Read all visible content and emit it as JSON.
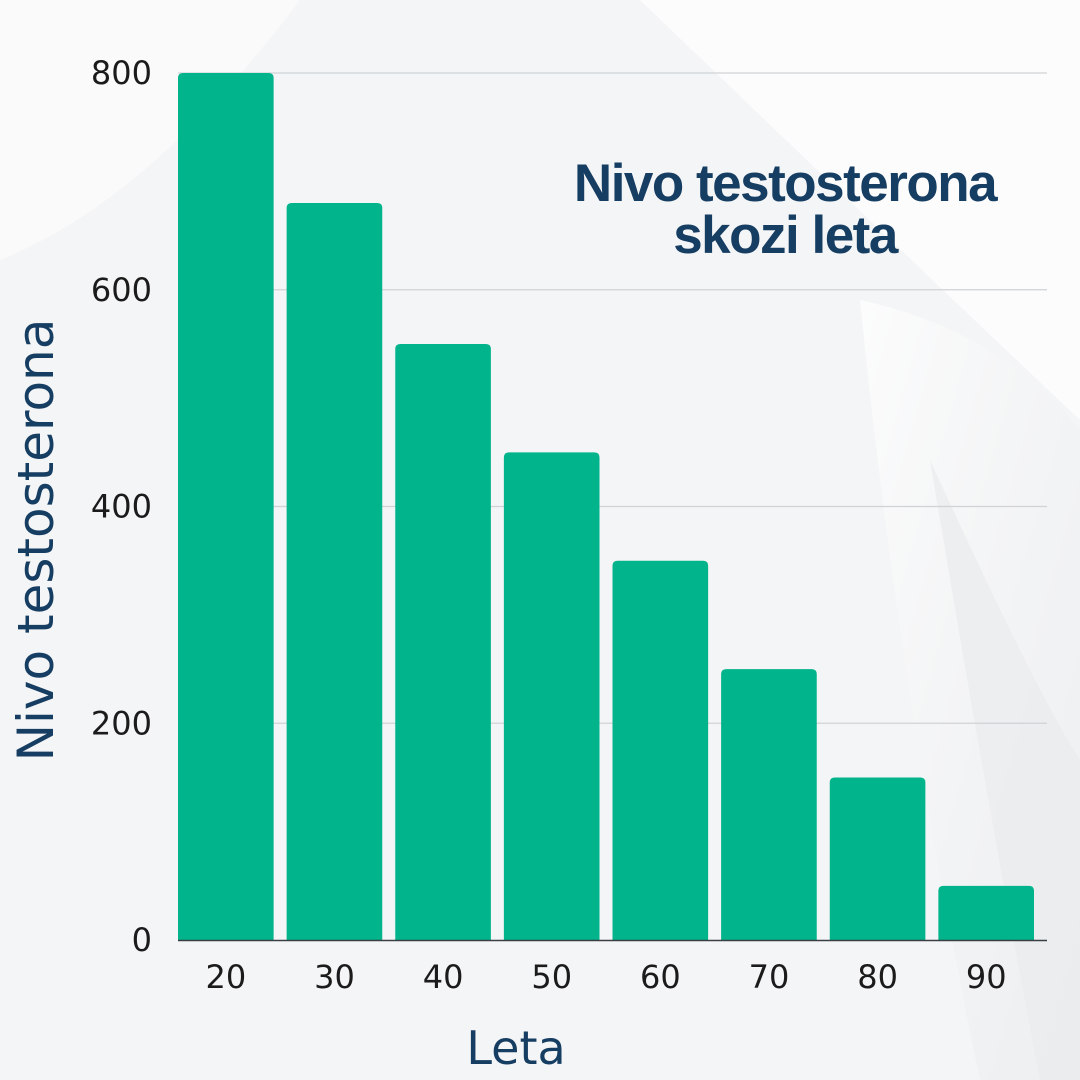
{
  "colors": {
    "background": "#f4f5f6",
    "bar": "#02b48b",
    "title": "#163d62",
    "grid": "#cfd3d6",
    "tick": "#1b1b1b"
  },
  "chart_data": {
    "type": "bar",
    "title_lines": [
      "Nivo testosterona",
      "skozi leta"
    ],
    "xlabel": "Leta",
    "ylabel": "Nivo testosterona",
    "categories": [
      "20",
      "30",
      "40",
      "50",
      "60",
      "70",
      "80",
      "90"
    ],
    "values": [
      800,
      680,
      550,
      450,
      350,
      250,
      150,
      50
    ],
    "ylim": [
      0,
      800
    ],
    "yticks": [
      0,
      200,
      400,
      600,
      800
    ],
    "grid": true,
    "legend": "none"
  }
}
